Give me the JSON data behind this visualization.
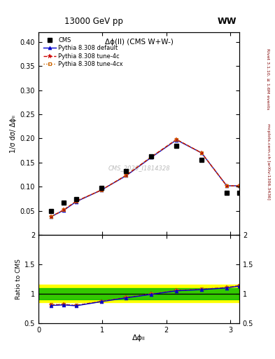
{
  "title_top": "13000 GeV pp",
  "title_right": "WW",
  "plot_title": "Δϕ(ll) (CMS W+W-)",
  "xlabel": "Δϕₗₗ",
  "ylabel_main": "1/σ dσ/ Δϕₗₗ",
  "ylabel_ratio": "Ratio to CMS",
  "watermark": "CMS_2020_I1814328",
  "right_label": "mcplots.cern.ch [arXiv:1306.3436]",
  "right_label2": "Rivet 3.1.10, ≥ 1.6M events",
  "cms_x": [
    0.196,
    0.393,
    0.589,
    0.982,
    1.374,
    1.767,
    2.16,
    2.553,
    2.945,
    3.141
  ],
  "cms_y": [
    0.049,
    0.067,
    0.075,
    0.098,
    0.132,
    0.163,
    0.185,
    0.155,
    0.088,
    0.088
  ],
  "pythia_default_x": [
    0.196,
    0.393,
    0.589,
    0.982,
    1.374,
    1.767,
    2.16,
    2.553,
    2.945,
    3.141
  ],
  "pythia_default_y": [
    0.038,
    0.051,
    0.069,
    0.093,
    0.123,
    0.161,
    0.197,
    0.17,
    0.102,
    0.102
  ],
  "pythia_4c_x": [
    0.196,
    0.393,
    0.589,
    0.982,
    1.374,
    1.767,
    2.16,
    2.553,
    2.945,
    3.141
  ],
  "pythia_4c_y": [
    0.038,
    0.052,
    0.07,
    0.093,
    0.124,
    0.162,
    0.198,
    0.17,
    0.102,
    0.102
  ],
  "pythia_4cx_x": [
    0.196,
    0.393,
    0.589,
    0.982,
    1.374,
    1.767,
    2.16,
    2.553,
    2.945,
    3.141
  ],
  "pythia_4cx_y": [
    0.038,
    0.052,
    0.07,
    0.093,
    0.124,
    0.162,
    0.198,
    0.17,
    0.102,
    0.102
  ],
  "ratio_x": [
    0.196,
    0.393,
    0.589,
    0.982,
    1.374,
    1.767,
    2.16,
    2.553,
    2.945,
    3.141
  ],
  "ratio_default_y": [
    0.8,
    0.81,
    0.795,
    0.865,
    0.93,
    0.99,
    1.05,
    1.07,
    1.1,
    1.13
  ],
  "ratio_4c_y": [
    0.81,
    0.815,
    0.8,
    0.87,
    0.935,
    0.995,
    1.055,
    1.075,
    1.105,
    1.135
  ],
  "ratio_4cx_y": [
    0.815,
    0.82,
    0.805,
    0.872,
    0.937,
    0.997,
    1.057,
    1.077,
    1.107,
    1.137
  ],
  "ylim_main": [
    0.0,
    0.42
  ],
  "ylim_ratio": [
    0.5,
    2.0
  ],
  "xlim": [
    0.0,
    3.14159
  ],
  "yticks_main": [
    0.0,
    0.05,
    0.1,
    0.15,
    0.2,
    0.25,
    0.3,
    0.35,
    0.4
  ],
  "ytick_labels_main": [
    "",
    "0.05",
    "0.10",
    "0.15",
    "0.20",
    "0.25",
    "0.30",
    "0.35",
    "0.40"
  ],
  "yticks_ratio": [
    0.5,
    1.0,
    1.5,
    2.0
  ],
  "ytick_labels_ratio": [
    "0.5",
    "1",
    "1.5",
    "2"
  ],
  "xticks": [
    0,
    1,
    2,
    3
  ],
  "color_default": "#0000cc",
  "color_4c": "#cc0000",
  "color_4cx": "#cc6600",
  "color_cms": "#000000",
  "color_band_yellow": "#ffff00",
  "color_band_green": "#00bb00",
  "color_watermark": "#bbbbbb"
}
